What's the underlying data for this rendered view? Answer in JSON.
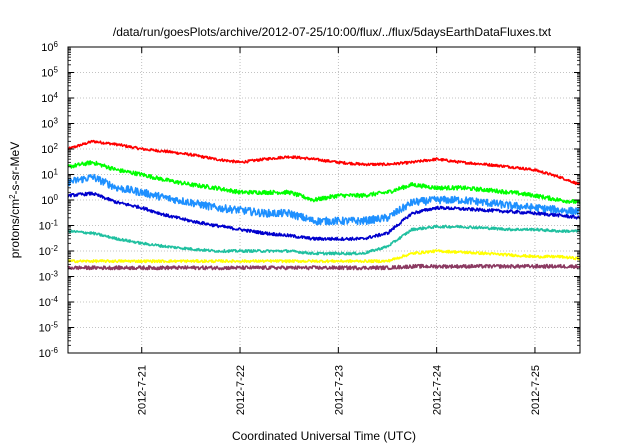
{
  "chart_data": {
    "type": "line",
    "title": "/data/run/goesPlots/archive/2012-07-25/10:00/flux/../flux/5daysEarthDataFluxes.txt",
    "xlabel": "Coordinated Universal Time (UTC)",
    "ylabel": {
      "base": "protons/cm",
      "sup": "2",
      "rest": "-s-sr-MeV"
    },
    "yscale": "log",
    "ylim": [
      1e-06,
      1000000.0
    ],
    "y_ticks": [
      {
        "base": "10",
        "exp": "-6",
        "value": -6
      },
      {
        "base": "10",
        "exp": "-5",
        "value": -5
      },
      {
        "base": "10",
        "exp": "-4",
        "value": -4
      },
      {
        "base": "10",
        "exp": "-3",
        "value": -3
      },
      {
        "base": "10",
        "exp": "-2",
        "value": -2
      },
      {
        "base": "10",
        "exp": "-1",
        "value": -1
      },
      {
        "base": "10",
        "exp": "0",
        "value": 0
      },
      {
        "base": "10",
        "exp": "1",
        "value": 1
      },
      {
        "base": "10",
        "exp": "2",
        "value": 2
      },
      {
        "base": "10",
        "exp": "3",
        "value": 3
      },
      {
        "base": "10",
        "exp": "4",
        "value": 4
      },
      {
        "base": "10",
        "exp": "5",
        "value": 5
      },
      {
        "base": "10",
        "exp": "6",
        "value": 6
      }
    ],
    "xlim": [
      "2012-07-20 06:00",
      "2012-07-25 11:00"
    ],
    "x_ticks": [
      {
        "label": "2012-7-21",
        "value": "2012-07-21 00:00"
      },
      {
        "label": "2012-7-22",
        "value": "2012-07-22 00:00"
      },
      {
        "label": "2012-7-23",
        "value": "2012-07-23 00:00"
      },
      {
        "label": "2012-7-24",
        "value": "2012-07-24 00:00"
      },
      {
        "label": "2012-7-25",
        "value": "2012-07-25 00:00"
      }
    ],
    "grid": true,
    "series": [
      {
        "color": "#ff0000",
        "noise": 0.05,
        "x": [
          "2012-07-20 06:00",
          "2012-07-20 12:00",
          "2012-07-20 18:00",
          "2012-07-21 00:00",
          "2012-07-21 06:00",
          "2012-07-21 12:00",
          "2012-07-21 18:00",
          "2012-07-22 00:00",
          "2012-07-22 06:00",
          "2012-07-22 12:00",
          "2012-07-22 18:00",
          "2012-07-23 00:00",
          "2012-07-23 06:00",
          "2012-07-23 12:00",
          "2012-07-23 18:00",
          "2012-07-24 00:00",
          "2012-07-24 06:00",
          "2012-07-24 12:00",
          "2012-07-24 18:00",
          "2012-07-25 00:00",
          "2012-07-25 06:00",
          "2012-07-25 11:00"
        ],
        "y": [
          100,
          200,
          150,
          100,
          80,
          60,
          40,
          30,
          40,
          50,
          40,
          30,
          25,
          25,
          30,
          40,
          30,
          25,
          20,
          15,
          8,
          4
        ]
      },
      {
        "color": "#00ff00",
        "noise": 0.08,
        "x": [
          "2012-07-20 06:00",
          "2012-07-20 12:00",
          "2012-07-20 18:00",
          "2012-07-21 00:00",
          "2012-07-21 06:00",
          "2012-07-21 12:00",
          "2012-07-21 18:00",
          "2012-07-22 00:00",
          "2012-07-22 06:00",
          "2012-07-22 12:00",
          "2012-07-22 18:00",
          "2012-07-23 00:00",
          "2012-07-23 06:00",
          "2012-07-23 12:00",
          "2012-07-23 18:00",
          "2012-07-24 00:00",
          "2012-07-24 06:00",
          "2012-07-24 12:00",
          "2012-07-24 18:00",
          "2012-07-25 00:00",
          "2012-07-25 06:00",
          "2012-07-25 11:00"
        ],
        "y": [
          20,
          30,
          15,
          10,
          6,
          4,
          3,
          2,
          2,
          2,
          1,
          1.5,
          1.5,
          2,
          4,
          3,
          3,
          2.5,
          2,
          1.5,
          1,
          0.8
        ]
      },
      {
        "color": "#1e90ff",
        "noise": 0.15,
        "x": [
          "2012-07-20 06:00",
          "2012-07-20 12:00",
          "2012-07-20 18:00",
          "2012-07-21 00:00",
          "2012-07-21 06:00",
          "2012-07-21 12:00",
          "2012-07-21 18:00",
          "2012-07-22 00:00",
          "2012-07-22 06:00",
          "2012-07-22 12:00",
          "2012-07-22 18:00",
          "2012-07-23 00:00",
          "2012-07-23 06:00",
          "2012-07-23 12:00",
          "2012-07-23 18:00",
          "2012-07-24 00:00",
          "2012-07-24 06:00",
          "2012-07-24 12:00",
          "2012-07-24 18:00",
          "2012-07-25 00:00",
          "2012-07-25 06:00",
          "2012-07-25 11:00"
        ],
        "y": [
          5,
          8,
          3,
          2,
          1.2,
          0.8,
          0.5,
          0.4,
          0.3,
          0.3,
          0.15,
          0.15,
          0.15,
          0.2,
          0.8,
          1,
          1,
          0.8,
          0.6,
          0.5,
          0.4,
          0.35
        ]
      },
      {
        "color": "#0000cd",
        "noise": 0.06,
        "x": [
          "2012-07-20 06:00",
          "2012-07-20 12:00",
          "2012-07-20 18:00",
          "2012-07-21 00:00",
          "2012-07-21 06:00",
          "2012-07-21 12:00",
          "2012-07-21 18:00",
          "2012-07-22 00:00",
          "2012-07-22 06:00",
          "2012-07-22 12:00",
          "2012-07-22 18:00",
          "2012-07-23 00:00",
          "2012-07-23 06:00",
          "2012-07-23 12:00",
          "2012-07-23 18:00",
          "2012-07-24 00:00",
          "2012-07-24 06:00",
          "2012-07-24 12:00",
          "2012-07-24 18:00",
          "2012-07-25 00:00",
          "2012-07-25 06:00",
          "2012-07-25 11:00"
        ],
        "y": [
          1.5,
          1.8,
          0.8,
          0.5,
          0.25,
          0.15,
          0.1,
          0.07,
          0.05,
          0.04,
          0.03,
          0.03,
          0.03,
          0.05,
          0.3,
          0.5,
          0.45,
          0.4,
          0.35,
          0.3,
          0.25,
          0.2
        ]
      },
      {
        "color": "#20c0a0",
        "noise": 0.05,
        "x": [
          "2012-07-20 06:00",
          "2012-07-20 12:00",
          "2012-07-20 18:00",
          "2012-07-21 00:00",
          "2012-07-21 06:00",
          "2012-07-21 12:00",
          "2012-07-21 18:00",
          "2012-07-22 00:00",
          "2012-07-22 06:00",
          "2012-07-22 12:00",
          "2012-07-22 18:00",
          "2012-07-23 00:00",
          "2012-07-23 06:00",
          "2012-07-23 12:00",
          "2012-07-23 18:00",
          "2012-07-24 00:00",
          "2012-07-24 06:00",
          "2012-07-24 12:00",
          "2012-07-24 18:00",
          "2012-07-25 00:00",
          "2012-07-25 06:00",
          "2012-07-25 11:00"
        ],
        "y": [
          0.06,
          0.05,
          0.03,
          0.02,
          0.015,
          0.012,
          0.01,
          0.01,
          0.01,
          0.01,
          0.008,
          0.008,
          0.008,
          0.015,
          0.07,
          0.09,
          0.09,
          0.08,
          0.07,
          0.07,
          0.06,
          0.06
        ]
      },
      {
        "color": "#ffff00",
        "noise": 0.05,
        "x": [
          "2012-07-20 06:00",
          "2012-07-20 12:00",
          "2012-07-20 18:00",
          "2012-07-21 00:00",
          "2012-07-21 06:00",
          "2012-07-21 12:00",
          "2012-07-21 18:00",
          "2012-07-22 00:00",
          "2012-07-22 06:00",
          "2012-07-22 12:00",
          "2012-07-22 18:00",
          "2012-07-23 00:00",
          "2012-07-23 06:00",
          "2012-07-23 12:00",
          "2012-07-23 18:00",
          "2012-07-24 00:00",
          "2012-07-24 06:00",
          "2012-07-24 12:00",
          "2012-07-24 18:00",
          "2012-07-25 00:00",
          "2012-07-25 06:00",
          "2012-07-25 11:00"
        ],
        "y": [
          0.004,
          0.004,
          0.004,
          0.004,
          0.004,
          0.004,
          0.004,
          0.004,
          0.004,
          0.004,
          0.004,
          0.004,
          0.004,
          0.004,
          0.008,
          0.01,
          0.009,
          0.008,
          0.007,
          0.006,
          0.006,
          0.005
        ]
      },
      {
        "color": "#8b3a62",
        "noise": 0.07,
        "x": [
          "2012-07-20 06:00",
          "2012-07-20 12:00",
          "2012-07-20 18:00",
          "2012-07-21 00:00",
          "2012-07-21 06:00",
          "2012-07-21 12:00",
          "2012-07-21 18:00",
          "2012-07-22 00:00",
          "2012-07-22 06:00",
          "2012-07-22 12:00",
          "2012-07-22 18:00",
          "2012-07-23 00:00",
          "2012-07-23 06:00",
          "2012-07-23 12:00",
          "2012-07-23 18:00",
          "2012-07-24 00:00",
          "2012-07-24 06:00",
          "2012-07-24 12:00",
          "2012-07-24 18:00",
          "2012-07-25 00:00",
          "2012-07-25 06:00",
          "2012-07-25 11:00"
        ],
        "y": [
          0.0022,
          0.0022,
          0.0022,
          0.0022,
          0.0022,
          0.0022,
          0.0022,
          0.0022,
          0.0022,
          0.0022,
          0.0022,
          0.0022,
          0.0022,
          0.0022,
          0.0025,
          0.0025,
          0.0025,
          0.0025,
          0.0025,
          0.0025,
          0.0025,
          0.0025
        ]
      }
    ]
  }
}
